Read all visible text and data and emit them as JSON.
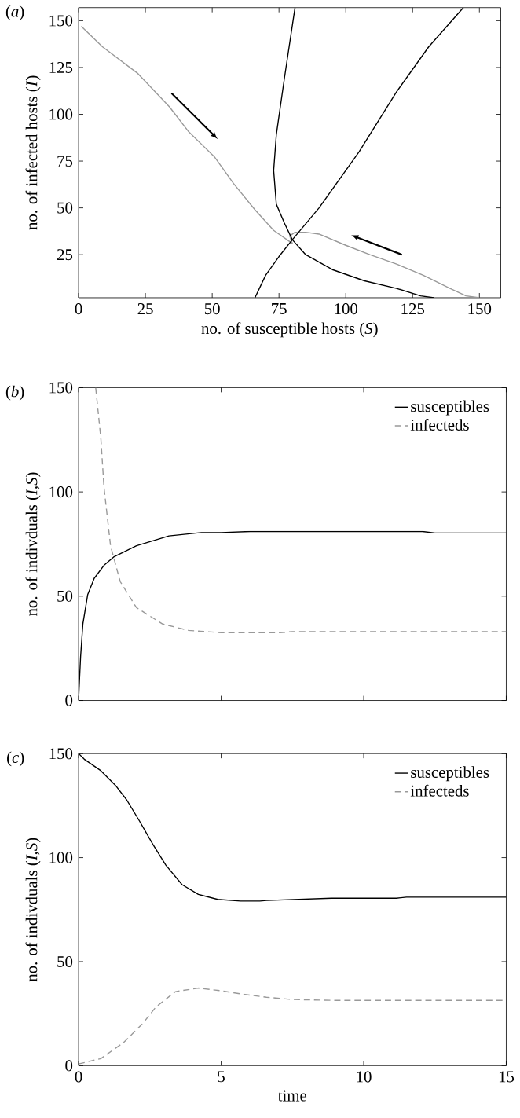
{
  "chart_data": [
    {
      "type": "line",
      "title": "(*a*)",
      "xlabel": "no. of susceptible hosts (*S*)",
      "ylabel": "no. of infected hosts (*I*)",
      "xlim": [
        0,
        158
      ],
      "ylim": [
        2,
        157
      ],
      "xticks": [
        0,
        25,
        50,
        75,
        100,
        125,
        150
      ],
      "yticks": [
        25,
        50,
        75,
        100,
        125,
        150
      ],
      "series": [
        {
          "color": "#999999",
          "x": [
            1,
            9,
            22,
            34,
            41,
            51,
            58,
            66,
            73,
            78,
            80
          ],
          "values": [
            147,
            136,
            122,
            104,
            91,
            77,
            63,
            49,
            38,
            33,
            31
          ]
        },
        {
          "color": "#999999",
          "x": [
            150,
            145,
            139,
            129,
            119,
            109,
            100,
            90,
            85,
            81,
            79,
            80
          ],
          "values": [
            2,
            3,
            7,
            14,
            20,
            25,
            30,
            36,
            37,
            37,
            35,
            31
          ]
        },
        {
          "color": "#000000",
          "x": [
            81,
            77,
            74,
            73,
            74,
            77,
            80,
            85,
            95,
            107,
            119,
            128,
            133
          ],
          "values": [
            157,
            119,
            89,
            70,
            52,
            42,
            33,
            25,
            17,
            11,
            7,
            3,
            2
          ]
        },
        {
          "color": "#000000",
          "x": [
            66,
            70,
            75,
            80,
            90,
            105,
            119,
            131,
            144
          ],
          "values": [
            2,
            14,
            24,
            33,
            50,
            80,
            112,
            136,
            157
          ]
        }
      ]
    },
    {
      "type": "line",
      "title": "(*b*)",
      "ylabel": "no. of indivduals (*I*,*S*)",
      "legend": "top right",
      "tick_labels": "y",
      "xlim": [
        0,
        15
      ],
      "ylim": [
        0,
        150
      ],
      "xticks": [
        0,
        5,
        10,
        15
      ],
      "yticks": [
        0,
        50,
        100,
        150
      ],
      "series": [
        {
          "name": "susceptibles",
          "color": "#000000",
          "line_style": "solid",
          "x": [
            0,
            0.07,
            0.15,
            0.32,
            0.55,
            0.89,
            1.23,
            2.03,
            3.17,
            4.31,
            5,
            6.02,
            12.06,
            12.5,
            15
          ],
          "values": [
            0.8,
            21,
            36.7,
            50.8,
            58.6,
            64.8,
            68.8,
            74.2,
            78.9,
            80.5,
            80.5,
            81,
            81,
            80.3,
            80.3
          ]
        },
        {
          "name": "infecteds",
          "color": "#999999",
          "line_style": "dashed",
          "x": [
            0.6,
            0.78,
            0.89,
            1.12,
            1.46,
            2.03,
            2.94,
            3.85,
            5,
            7.05,
            7.5,
            15
          ],
          "values": [
            150,
            125.8,
            102.3,
            74.2,
            57,
            44.5,
            36.7,
            33.6,
            32.5,
            32.5,
            33,
            33
          ]
        }
      ]
    },
    {
      "type": "line",
      "title": "(*c*)",
      "xlabel": "time",
      "ylabel": "no. of indivduals (*I*,*S*)",
      "legend": "top right",
      "xlim": [
        0,
        15
      ],
      "ylim": [
        0,
        150
      ],
      "xticks": [
        0,
        5,
        10,
        15
      ],
      "yticks": [
        0,
        50,
        100,
        150
      ],
      "series": [
        {
          "name": "susceptibles",
          "color": "#000000",
          "line_style": "solid",
          "x": [
            0,
            0.2,
            0.78,
            1.29,
            1.69,
            2.14,
            2.6,
            3.06,
            3.63,
            4.2,
            4.88,
            5.68,
            6.36,
            6.59,
            8.87,
            11.15,
            11.5,
            15
          ],
          "values": [
            150,
            147.3,
            141.8,
            134.8,
            127.7,
            117.5,
            106.5,
            96.4,
            87,
            82.3,
            79.9,
            79.1,
            79.1,
            79.4,
            80.5,
            80.5,
            81,
            81
          ]
        },
        {
          "name": "infecteds",
          "color": "#999999",
          "line_style": "dashed",
          "x": [
            0,
            0.78,
            1.57,
            2.26,
            2.71,
            3.4,
            4.2,
            5,
            5.68,
            6.59,
            7.5,
            8.87,
            15
          ],
          "values": [
            0.8,
            3.4,
            11,
            20.4,
            28.2,
            35.6,
            37.3,
            36,
            34.5,
            32.9,
            31.8,
            31.4,
            31.4
          ]
        }
      ]
    }
  ]
}
